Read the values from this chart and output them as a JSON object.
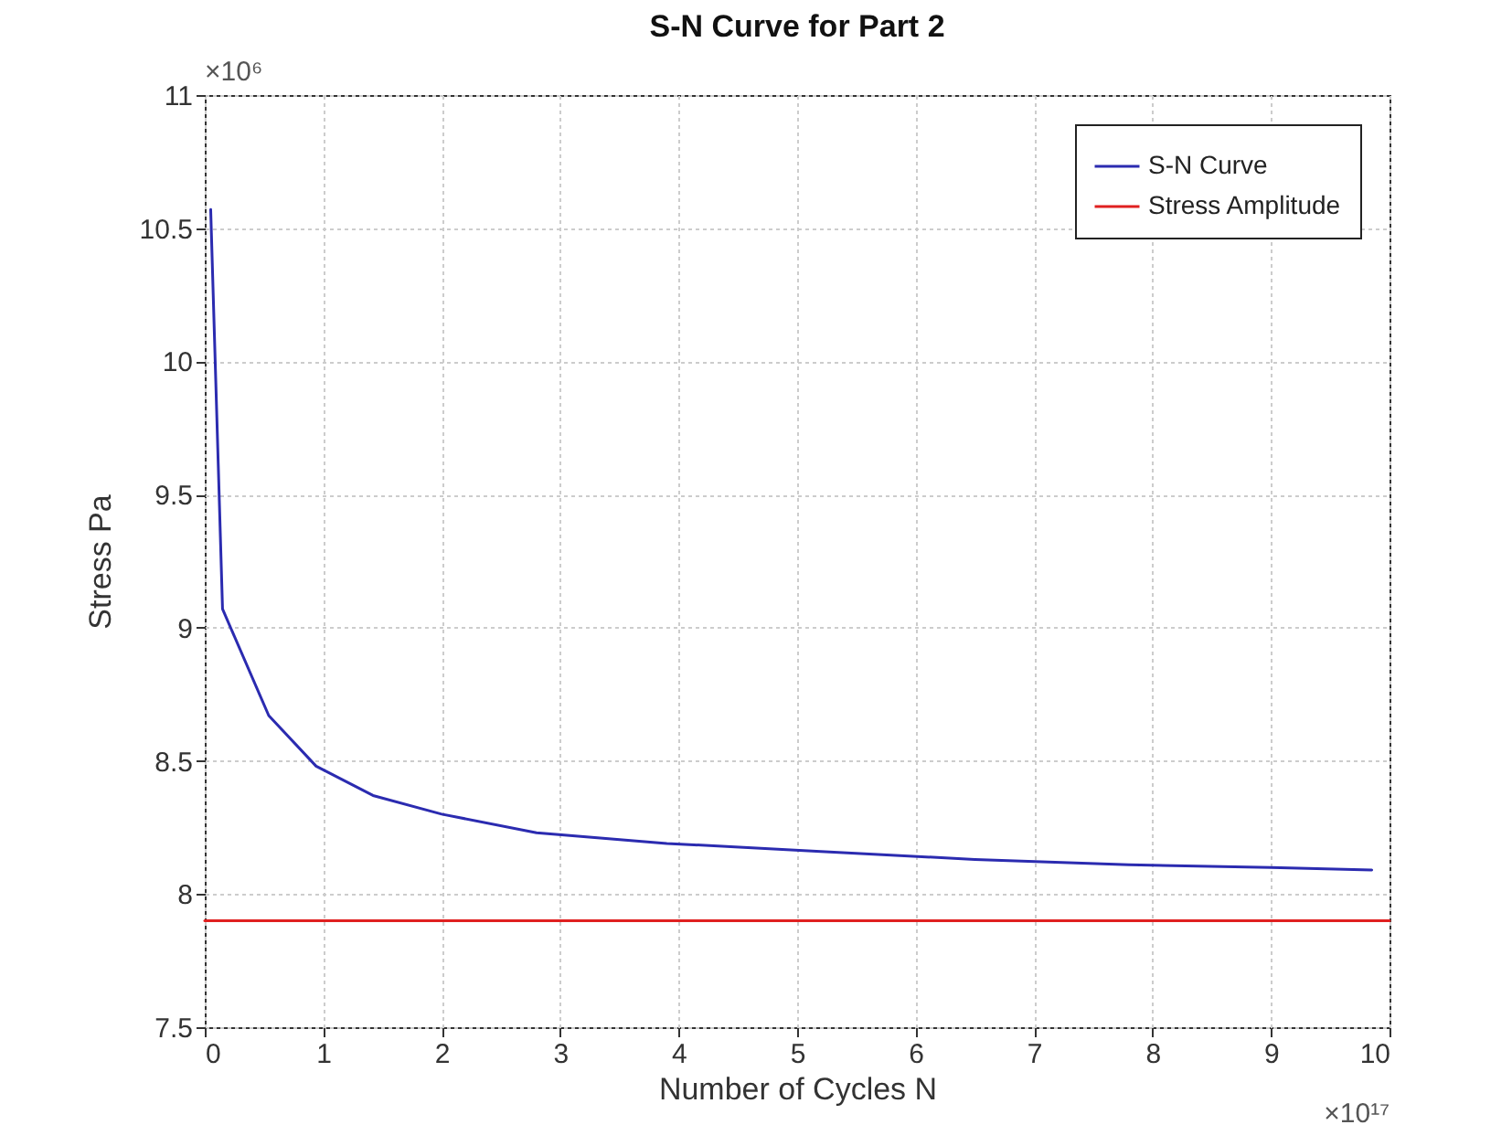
{
  "chart_data": {
    "type": "line",
    "title": "S-N Curve for Part 2",
    "xlabel": "Number of Cycles N",
    "ylabel": "Stress Pa",
    "annotations": [
      "×10⁶",
      "×10¹⁷"
    ],
    "series": [
      {
        "name": "S-N Curve",
        "color": "#2b2bb0",
        "x": [
          0.05,
          0.15,
          0.54,
          0.94,
          1.42,
          2.0,
          2.8,
          3.9,
          5.2,
          6.5,
          7.8,
          9.0,
          9.85
        ],
        "values": [
          10.57,
          9.07,
          8.67,
          8.48,
          8.37,
          8.3,
          8.23,
          8.19,
          8.16,
          8.13,
          8.11,
          8.1,
          8.09
        ]
      },
      {
        "name": "Stress Amplitude",
        "color": "#e02020",
        "x": [
          0,
          10
        ],
        "values": [
          7.9,
          7.9
        ]
      }
    ],
    "xlim": [
      0,
      10
    ],
    "xticks": [
      0,
      1,
      2,
      3,
      4,
      5,
      6,
      7,
      8,
      9,
      10
    ],
    "ylim": [
      7.5,
      11
    ],
    "yticks": [
      7.5,
      8,
      8.5,
      9,
      9.5,
      10,
      10.5,
      11
    ],
    "grid": true,
    "legend": "top right",
    "line_style": "solid",
    "marker": "none"
  }
}
